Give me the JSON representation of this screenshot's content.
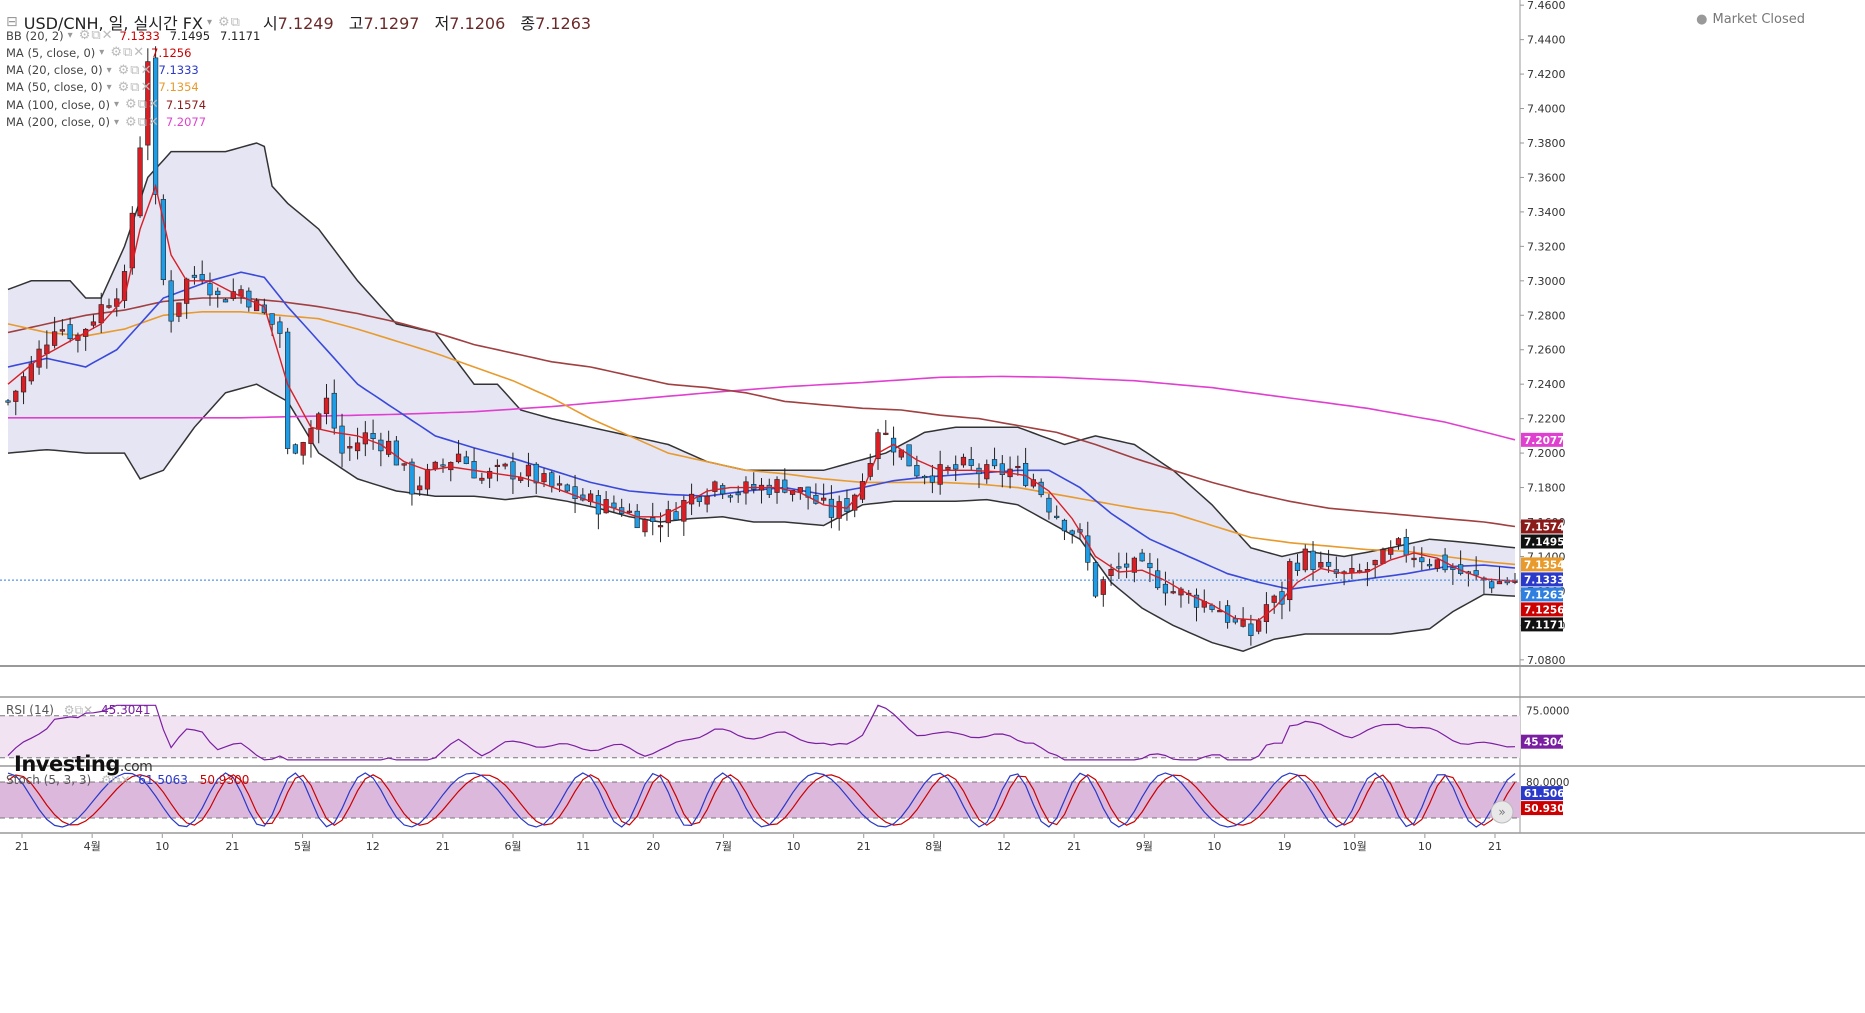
{
  "header": {
    "symbol": "USD/CNH, 일, 실시간 FX",
    "open_label": "시",
    "open": "7.1249",
    "high_label": "고",
    "high": "7.1297",
    "low_label": "저",
    "low": "7.1206",
    "close_label": "종",
    "close": "7.1263",
    "market_status": "Market Closed"
  },
  "indicators": [
    {
      "label": "BB (20, 2)",
      "values": [
        "7.1333",
        "7.1495",
        "7.1171"
      ],
      "color": "#cc0000"
    },
    {
      "label": "MA (5, close, 0)",
      "values": [
        "7.1256"
      ],
      "color": "#cc0000"
    },
    {
      "label": "MA (20, close, 0)",
      "values": [
        "7.1333"
      ],
      "color": "#2a39c9"
    },
    {
      "label": "MA (50, close, 0)",
      "values": [
        "7.1354"
      ],
      "color": "#e89a2c"
    },
    {
      "label": "MA (100, close, 0)",
      "values": [
        "7.1574"
      ],
      "color": "#8b1a1a"
    },
    {
      "label": "MA (200, close, 0)",
      "values": [
        "7.2077"
      ],
      "color": "#e040d0"
    }
  ],
  "logo": {
    "main": "Investing",
    "suffix": ".com"
  },
  "rsi": {
    "label": "RSI (14)",
    "value": "45.3041",
    "scale_top": "75.0000",
    "color": "#7b1fa2"
  },
  "stoch": {
    "label": "Stoch (5, 3, 3)",
    "k_value": "61.5063",
    "d_value": "50.9300",
    "scale_top": "80.0000",
    "k_color": "#2a39c9",
    "d_color": "#cc0000"
  },
  "chart_data": {
    "type": "candlestick",
    "y_axis_labels": [
      "7.4600",
      "7.4400",
      "7.4200",
      "7.4000",
      "7.3800",
      "7.3600",
      "7.3400",
      "7.3200",
      "7.3000",
      "7.2800",
      "7.2600",
      "7.2400",
      "7.2200",
      "7.2000",
      "7.1800",
      "7.1600",
      "7.1400",
      "7.1200",
      "7.1000",
      "7.0800"
    ],
    "ylim": [
      7.077,
      7.463
    ],
    "x_axis_labels": [
      "21",
      "4월",
      "10",
      "21",
      "5월",
      "12",
      "21",
      "6월",
      "11",
      "20",
      "7월",
      "10",
      "21",
      "8월",
      "12",
      "21",
      "9월",
      "10",
      "19",
      "10월",
      "10",
      "21"
    ],
    "price_tags": [
      {
        "value": 7.2077,
        "text": "7.2077",
        "bg": "#e040d0"
      },
      {
        "value": 7.1574,
        "text": "7.1574",
        "bg": "#8b1a1a"
      },
      {
        "value": 7.1495,
        "text": "7.1495",
        "bg": "#111111"
      },
      {
        "value": 7.1354,
        "text": "7.1354",
        "bg": "#e89a2c"
      },
      {
        "value": 7.1333,
        "text": "7.1333",
        "bg": "#2a39c9"
      },
      {
        "value": 7.1263,
        "text": "7.1263",
        "bg": "#2f7fe0"
      },
      {
        "value": 7.1256,
        "text": "7.1256",
        "bg": "#cc0000"
      },
      {
        "value": 7.1171,
        "text": "7.1171",
        "bg": "#111111"
      }
    ],
    "close_path": [
      [
        0,
        7.23
      ],
      [
        3,
        7.25
      ],
      [
        6,
        7.275
      ],
      [
        9,
        7.268
      ],
      [
        12,
        7.285
      ],
      [
        15,
        7.3
      ],
      [
        16,
        7.34
      ],
      [
        17,
        7.38
      ],
      [
        18,
        7.43
      ],
      [
        19,
        7.345
      ],
      [
        20,
        7.3
      ],
      [
        21,
        7.28
      ],
      [
        23,
        7.3
      ],
      [
        25,
        7.305
      ],
      [
        27,
        7.29
      ],
      [
        30,
        7.295
      ],
      [
        33,
        7.28
      ],
      [
        35,
        7.27
      ],
      [
        36,
        7.2
      ],
      [
        39,
        7.215
      ],
      [
        41,
        7.23
      ],
      [
        43,
        7.2
      ],
      [
        46,
        7.21
      ],
      [
        49,
        7.205
      ],
      [
        52,
        7.18
      ],
      [
        55,
        7.19
      ],
      [
        58,
        7.2
      ],
      [
        61,
        7.185
      ],
      [
        64,
        7.19
      ],
      [
        67,
        7.188
      ],
      [
        70,
        7.18
      ],
      [
        73,
        7.175
      ],
      [
        76,
        7.17
      ],
      [
        79,
        7.168
      ],
      [
        82,
        7.16
      ],
      [
        85,
        7.163
      ],
      [
        88,
        7.175
      ],
      [
        91,
        7.183
      ],
      [
        94,
        7.178
      ],
      [
        97,
        7.18
      ],
      [
        100,
        7.182
      ],
      [
        103,
        7.175
      ],
      [
        106,
        7.165
      ],
      [
        108,
        7.17
      ],
      [
        110,
        7.185
      ],
      [
        112,
        7.215
      ],
      [
        114,
        7.205
      ],
      [
        117,
        7.19
      ],
      [
        120,
        7.188
      ],
      [
        123,
        7.192
      ],
      [
        126,
        7.188
      ],
      [
        129,
        7.19
      ],
      [
        132,
        7.185
      ],
      [
        134,
        7.17
      ],
      [
        136,
        7.16
      ],
      [
        138,
        7.15
      ],
      [
        140,
        7.12
      ],
      [
        142,
        7.13
      ],
      [
        144,
        7.135
      ],
      [
        147,
        7.13
      ],
      [
        150,
        7.12
      ],
      [
        153,
        7.115
      ],
      [
        156,
        7.11
      ],
      [
        158,
        7.1
      ],
      [
        160,
        7.095
      ],
      [
        162,
        7.112
      ],
      [
        164,
        7.115
      ],
      [
        165,
        7.135
      ],
      [
        167,
        7.14
      ],
      [
        170,
        7.13
      ],
      [
        173,
        7.128
      ],
      [
        176,
        7.135
      ],
      [
        179,
        7.145
      ],
      [
        182,
        7.14
      ],
      [
        185,
        7.135
      ],
      [
        188,
        7.128
      ],
      [
        191,
        7.125
      ],
      [
        194,
        7.126
      ]
    ],
    "n_days": 195,
    "bb_upper": [
      [
        0,
        7.295
      ],
      [
        3,
        7.3
      ],
      [
        8,
        7.3
      ],
      [
        10,
        7.29
      ],
      [
        12,
        7.29
      ],
      [
        15,
        7.32
      ],
      [
        18,
        7.36
      ],
      [
        21,
        7.375
      ],
      [
        24,
        7.375
      ],
      [
        28,
        7.375
      ],
      [
        32,
        7.38
      ],
      [
        33,
        7.378
      ],
      [
        34,
        7.355
      ],
      [
        36,
        7.345
      ],
      [
        40,
        7.33
      ],
      [
        45,
        7.3
      ],
      [
        50,
        7.275
      ],
      [
        55,
        7.27
      ],
      [
        60,
        7.24
      ],
      [
        63,
        7.24
      ],
      [
        66,
        7.225
      ],
      [
        70,
        7.22
      ],
      [
        75,
        7.215
      ],
      [
        80,
        7.21
      ],
      [
        85,
        7.205
      ],
      [
        90,
        7.195
      ],
      [
        95,
        7.19
      ],
      [
        100,
        7.19
      ],
      [
        105,
        7.19
      ],
      [
        109,
        7.195
      ],
      [
        113,
        7.2
      ],
      [
        118,
        7.212
      ],
      [
        122,
        7.215
      ],
      [
        126,
        7.215
      ],
      [
        130,
        7.215
      ],
      [
        136,
        7.205
      ],
      [
        140,
        7.21
      ],
      [
        145,
        7.205
      ],
      [
        150,
        7.19
      ],
      [
        155,
        7.17
      ],
      [
        160,
        7.145
      ],
      [
        164,
        7.14
      ],
      [
        167,
        7.143
      ],
      [
        172,
        7.14
      ],
      [
        178,
        7.145
      ],
      [
        183,
        7.15
      ],
      [
        188,
        7.148
      ],
      [
        194,
        7.145
      ]
    ],
    "bb_lower": [
      [
        0,
        7.2
      ],
      [
        5,
        7.202
      ],
      [
        10,
        7.2
      ],
      [
        15,
        7.2
      ],
      [
        17,
        7.185
      ],
      [
        20,
        7.19
      ],
      [
        24,
        7.215
      ],
      [
        28,
        7.235
      ],
      [
        32,
        7.24
      ],
      [
        36,
        7.23
      ],
      [
        40,
        7.2
      ],
      [
        45,
        7.185
      ],
      [
        50,
        7.178
      ],
      [
        55,
        7.175
      ],
      [
        60,
        7.175
      ],
      [
        64,
        7.173
      ],
      [
        68,
        7.175
      ],
      [
        72,
        7.172
      ],
      [
        76,
        7.168
      ],
      [
        80,
        7.163
      ],
      [
        84,
        7.16
      ],
      [
        88,
        7.162
      ],
      [
        92,
        7.163
      ],
      [
        96,
        7.16
      ],
      [
        100,
        7.16
      ],
      [
        105,
        7.158
      ],
      [
        110,
        7.17
      ],
      [
        114,
        7.172
      ],
      [
        118,
        7.172
      ],
      [
        122,
        7.172
      ],
      [
        126,
        7.173
      ],
      [
        130,
        7.17
      ],
      [
        134,
        7.16
      ],
      [
        138,
        7.15
      ],
      [
        142,
        7.125
      ],
      [
        146,
        7.11
      ],
      [
        150,
        7.1
      ],
      [
        155,
        7.09
      ],
      [
        159,
        7.085
      ],
      [
        163,
        7.092
      ],
      [
        167,
        7.095
      ],
      [
        172,
        7.095
      ],
      [
        178,
        7.095
      ],
      [
        183,
        7.098
      ],
      [
        186,
        7.108
      ],
      [
        190,
        7.118
      ],
      [
        194,
        7.117
      ]
    ],
    "ma5": [
      [
        0,
        7.24
      ],
      [
        4,
        7.255
      ],
      [
        8,
        7.265
      ],
      [
        12,
        7.275
      ],
      [
        15,
        7.29
      ],
      [
        17,
        7.33
      ],
      [
        19,
        7.355
      ],
      [
        21,
        7.315
      ],
      [
        23,
        7.3
      ],
      [
        26,
        7.3
      ],
      [
        29,
        7.293
      ],
      [
        33,
        7.285
      ],
      [
        36,
        7.24
      ],
      [
        39,
        7.215
      ],
      [
        42,
        7.212
      ],
      [
        45,
        7.21
      ],
      [
        48,
        7.205
      ],
      [
        51,
        7.195
      ],
      [
        54,
        7.19
      ],
      [
        57,
        7.192
      ],
      [
        60,
        7.19
      ],
      [
        63,
        7.188
      ],
      [
        66,
        7.186
      ],
      [
        69,
        7.182
      ],
      [
        72,
        7.177
      ],
      [
        75,
        7.172
      ],
      [
        78,
        7.168
      ],
      [
        81,
        7.163
      ],
      [
        84,
        7.163
      ],
      [
        87,
        7.17
      ],
      [
        90,
        7.178
      ],
      [
        93,
        7.18
      ],
      [
        96,
        7.18
      ],
      [
        99,
        7.18
      ],
      [
        102,
        7.177
      ],
      [
        105,
        7.17
      ],
      [
        108,
        7.168
      ],
      [
        110,
        7.178
      ],
      [
        112,
        7.2
      ],
      [
        114,
        7.205
      ],
      [
        117,
        7.196
      ],
      [
        120,
        7.19
      ],
      [
        124,
        7.19
      ],
      [
        128,
        7.189
      ],
      [
        131,
        7.187
      ],
      [
        134,
        7.178
      ],
      [
        137,
        7.162
      ],
      [
        140,
        7.14
      ],
      [
        143,
        7.131
      ],
      [
        146,
        7.132
      ],
      [
        149,
        7.126
      ],
      [
        152,
        7.118
      ],
      [
        155,
        7.112
      ],
      [
        158,
        7.104
      ],
      [
        161,
        7.103
      ],
      [
        163,
        7.11
      ],
      [
        166,
        7.125
      ],
      [
        169,
        7.133
      ],
      [
        172,
        7.13
      ],
      [
        175,
        7.131
      ],
      [
        178,
        7.138
      ],
      [
        181,
        7.142
      ],
      [
        184,
        7.139
      ],
      [
        187,
        7.132
      ],
      [
        190,
        7.127
      ],
      [
        194,
        7.1256
      ]
    ],
    "ma20": [
      [
        0,
        7.25
      ],
      [
        5,
        7.255
      ],
      [
        10,
        7.25
      ],
      [
        14,
        7.26
      ],
      [
        17,
        7.275
      ],
      [
        20,
        7.29
      ],
      [
        23,
        7.295
      ],
      [
        26,
        7.3
      ],
      [
        30,
        7.305
      ],
      [
        33,
        7.302
      ],
      [
        36,
        7.285
      ],
      [
        40,
        7.265
      ],
      [
        45,
        7.24
      ],
      [
        50,
        7.225
      ],
      [
        55,
        7.21
      ],
      [
        60,
        7.203
      ],
      [
        65,
        7.197
      ],
      [
        70,
        7.19
      ],
      [
        75,
        7.183
      ],
      [
        80,
        7.178
      ],
      [
        85,
        7.176
      ],
      [
        90,
        7.175
      ],
      [
        95,
        7.178
      ],
      [
        100,
        7.18
      ],
      [
        105,
        7.176
      ],
      [
        110,
        7.18
      ],
      [
        114,
        7.184
      ],
      [
        118,
        7.186
      ],
      [
        124,
        7.188
      ],
      [
        130,
        7.19
      ],
      [
        134,
        7.19
      ],
      [
        138,
        7.18
      ],
      [
        142,
        7.165
      ],
      [
        147,
        7.15
      ],
      [
        152,
        7.14
      ],
      [
        157,
        7.13
      ],
      [
        161,
        7.125
      ],
      [
        165,
        7.121
      ],
      [
        170,
        7.124
      ],
      [
        175,
        7.127
      ],
      [
        180,
        7.13
      ],
      [
        185,
        7.134
      ],
      [
        190,
        7.135
      ],
      [
        194,
        7.1333
      ]
    ],
    "ma50": [
      [
        0,
        7.275
      ],
      [
        5,
        7.27
      ],
      [
        10,
        7.268
      ],
      [
        15,
        7.272
      ],
      [
        20,
        7.28
      ],
      [
        25,
        7.282
      ],
      [
        30,
        7.282
      ],
      [
        35,
        7.28
      ],
      [
        40,
        7.278
      ],
      [
        45,
        7.272
      ],
      [
        50,
        7.265
      ],
      [
        55,
        7.258
      ],
      [
        60,
        7.25
      ],
      [
        65,
        7.242
      ],
      [
        70,
        7.232
      ],
      [
        75,
        7.22
      ],
      [
        80,
        7.21
      ],
      [
        85,
        7.2
      ],
      [
        90,
        7.195
      ],
      [
        95,
        7.19
      ],
      [
        100,
        7.188
      ],
      [
        105,
        7.185
      ],
      [
        110,
        7.183
      ],
      [
        115,
        7.183
      ],
      [
        120,
        7.183
      ],
      [
        125,
        7.182
      ],
      [
        130,
        7.18
      ],
      [
        135,
        7.176
      ],
      [
        140,
        7.172
      ],
      [
        145,
        7.168
      ],
      [
        150,
        7.165
      ],
      [
        155,
        7.158
      ],
      [
        160,
        7.151
      ],
      [
        165,
        7.148
      ],
      [
        170,
        7.146
      ],
      [
        175,
        7.144
      ],
      [
        180,
        7.143
      ],
      [
        185,
        7.14
      ],
      [
        190,
        7.137
      ],
      [
        194,
        7.1354
      ]
    ],
    "ma100": [
      [
        0,
        7.27
      ],
      [
        5,
        7.275
      ],
      [
        10,
        7.28
      ],
      [
        15,
        7.283
      ],
      [
        20,
        7.288
      ],
      [
        25,
        7.29
      ],
      [
        30,
        7.29
      ],
      [
        35,
        7.288
      ],
      [
        40,
        7.285
      ],
      [
        45,
        7.281
      ],
      [
        50,
        7.276
      ],
      [
        55,
        7.27
      ],
      [
        60,
        7.263
      ],
      [
        65,
        7.258
      ],
      [
        70,
        7.253
      ],
      [
        75,
        7.25
      ],
      [
        80,
        7.245
      ],
      [
        85,
        7.24
      ],
      [
        90,
        7.238
      ],
      [
        95,
        7.235
      ],
      [
        100,
        7.23
      ],
      [
        105,
        7.228
      ],
      [
        110,
        7.226
      ],
      [
        115,
        7.225
      ],
      [
        120,
        7.222
      ],
      [
        125,
        7.22
      ],
      [
        130,
        7.216
      ],
      [
        135,
        7.212
      ],
      [
        140,
        7.205
      ],
      [
        145,
        7.197
      ],
      [
        150,
        7.19
      ],
      [
        155,
        7.183
      ],
      [
        160,
        7.177
      ],
      [
        165,
        7.172
      ],
      [
        170,
        7.168
      ],
      [
        175,
        7.166
      ],
      [
        180,
        7.164
      ],
      [
        185,
        7.162
      ],
      [
        190,
        7.16
      ],
      [
        194,
        7.1574
      ]
    ],
    "ma200": [
      [
        0,
        7.2205
      ],
      [
        10,
        7.2205
      ],
      [
        20,
        7.2205
      ],
      [
        30,
        7.2205
      ],
      [
        40,
        7.2215
      ],
      [
        50,
        7.2225
      ],
      [
        60,
        7.224
      ],
      [
        70,
        7.227
      ],
      [
        80,
        7.231
      ],
      [
        90,
        7.235
      ],
      [
        100,
        7.2385
      ],
      [
        110,
        7.241
      ],
      [
        120,
        7.244
      ],
      [
        128,
        7.2445
      ],
      [
        135,
        7.244
      ],
      [
        145,
        7.242
      ],
      [
        155,
        7.238
      ],
      [
        165,
        7.232
      ],
      [
        175,
        7.226
      ],
      [
        185,
        7.218
      ],
      [
        194,
        7.2077
      ]
    ],
    "rsi_range": [
      25,
      85
    ],
    "rsi_lines": [
      30,
      70
    ],
    "stoch_range": [
      0,
      100
    ],
    "stoch_lines": [
      20,
      80
    ]
  }
}
